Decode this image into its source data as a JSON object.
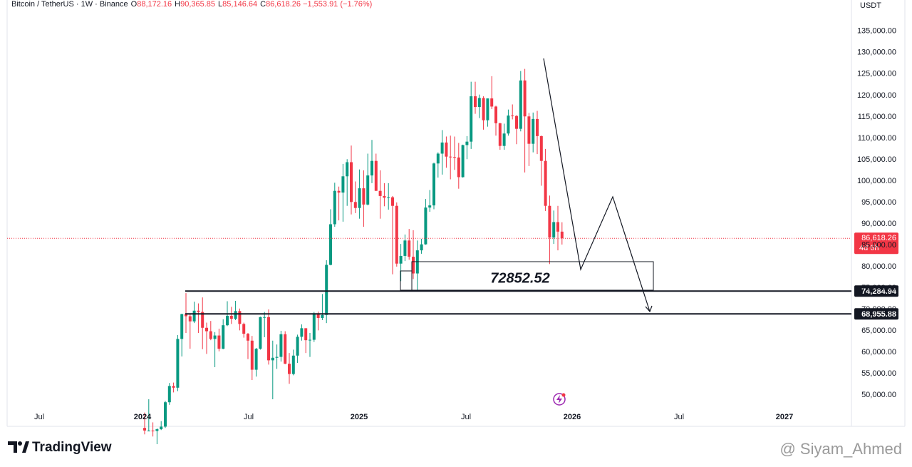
{
  "chart_data": {
    "type": "candlestick",
    "header": {
      "symbol": "Bitcoin / TetherUS · 1W · Binance",
      "ohlc": [
        {
          "key": "O",
          "value": "88,172.16"
        },
        {
          "key": "H",
          "value": "90,365.85"
        },
        {
          "key": "L",
          "value": "85,146.64"
        },
        {
          "key": "C",
          "value": "86,618.26"
        }
      ],
      "change": "−1,553.91 (−1.76%)"
    },
    "axis_unit": "USDT",
    "up_color": "#089981",
    "down_color": "#f23645",
    "open": [
      42300,
      41700,
      41700,
      41600,
      42000,
      42600,
      48300,
      52100,
      51700,
      63100,
      68900,
      68400,
      67200,
      69700,
      69400,
      65700,
      64900,
      63100,
      63900,
      60800,
      66300,
      68500,
      67800,
      69600,
      66600,
      64300,
      62700,
      55900,
      60800,
      68200,
      68200,
      58100,
      58700,
      58900,
      64200,
      57300,
      54900,
      59200,
      63600,
      65600,
      62800,
      62900,
      69000,
      68000,
      68700,
      80400,
      89900,
      97700,
      97300,
      101100,
      104400,
      95100,
      93700,
      98300,
      94500,
      101300,
      104700,
      97700,
      96500,
      96100,
      96200,
      94200,
      80700,
      82500,
      86100,
      82300,
      78400,
      83800,
      85200,
      93800,
      94300,
      104100,
      106400,
      109000,
      105700,
      105600,
      105500,
      100900,
      108400,
      109200,
      119800,
      117300,
      119400,
      114200,
      119300,
      117400,
      113500,
      108200,
      111100,
      115300,
      115200,
      112200,
      123500,
      115100,
      108700,
      114500,
      110500,
      104700,
      94200,
      86800,
      90400,
      88172.16
    ],
    "high": [
      45900,
      49000,
      43600,
      42200,
      43900,
      48600,
      52800,
      52900,
      64000,
      69000,
      73800,
      68900,
      71800,
      71400,
      72800,
      66900,
      67300,
      64700,
      65500,
      67700,
      71900,
      70600,
      72000,
      70200,
      66900,
      64500,
      63800,
      61000,
      68300,
      69400,
      70000,
      62700,
      61800,
      65000,
      64900,
      59800,
      60600,
      64100,
      66500,
      65600,
      64500,
      69400,
      69500,
      73600,
      81500,
      93400,
      99600,
      98700,
      104000,
      105100,
      108300,
      99900,
      102700,
      102500,
      106400,
      109600,
      106400,
      102500,
      99500,
      99500,
      96500,
      95000,
      85300,
      87500,
      88800,
      88500,
      86100,
      86500,
      95800,
      97900,
      104300,
      106700,
      111900,
      110400,
      110600,
      110400,
      108900,
      108500,
      110500,
      123200,
      123200,
      120200,
      119800,
      119300,
      124500,
      117600,
      113600,
      113400,
      116700,
      117900,
      115400,
      125700,
      126200,
      115900,
      116000,
      116400,
      110600,
      107500,
      96600,
      93100,
      94200,
      90365.85
    ],
    "low": [
      40800,
      41500,
      40300,
      38500,
      41800,
      42300,
      47700,
      50600,
      50900,
      59000,
      64500,
      60800,
      66800,
      64500,
      60700,
      59600,
      62800,
      56500,
      60200,
      60700,
      66100,
      66600,
      67500,
      65100,
      63400,
      58400,
      53500,
      54300,
      60600,
      63500,
      57100,
      49000,
      56100,
      57800,
      57200,
      52600,
      54600,
      57500,
      62700,
      59800,
      58900,
      62400,
      65100,
      67500,
      66800,
      80300,
      89300,
      90800,
      90500,
      94200,
      92200,
      92500,
      91200,
      89300,
      94300,
      99500,
      97700,
      91200,
      94100,
      93300,
      78200,
      80000,
      76600,
      81300,
      81600,
      77100,
      74400,
      83000,
      85100,
      92800,
      93400,
      100800,
      101500,
      103100,
      100400,
      102600,
      98200,
      100800,
      105100,
      107500,
      115700,
      114700,
      112000,
      112700,
      116800,
      110600,
      107300,
      107300,
      110600,
      114400,
      108600,
      111600,
      102000,
      103500,
      106700,
      106300,
      98900,
      93000,
      80600,
      85300,
      83800,
      85146.64
    ],
    "close": [
      41700,
      41700,
      41600,
      42000,
      42600,
      48300,
      52100,
      51700,
      63100,
      68900,
      68400,
      67200,
      69700,
      69400,
      65700,
      64900,
      63100,
      63900,
      60800,
      66300,
      68500,
      67800,
      69600,
      66600,
      64300,
      62700,
      55900,
      60800,
      68200,
      68200,
      58100,
      58700,
      58900,
      64200,
      57300,
      54900,
      59200,
      63600,
      65600,
      62800,
      62900,
      69000,
      68000,
      68700,
      80400,
      89900,
      97700,
      97300,
      101100,
      104400,
      95100,
      93700,
      98300,
      94500,
      101300,
      104700,
      97700,
      96500,
      96100,
      96200,
      94200,
      80700,
      82500,
      86100,
      82300,
      78400,
      83800,
      85200,
      93800,
      94300,
      104100,
      106400,
      109000,
      105700,
      105600,
      105500,
      100900,
      108400,
      109200,
      119800,
      117300,
      119400,
      114200,
      119300,
      117400,
      113500,
      108200,
      111100,
      115300,
      115200,
      112200,
      123500,
      115100,
      108700,
      114500,
      110500,
      104700,
      94200,
      86800,
      90400,
      88172.16,
      86618.26
    ],
    "ylim": [
      47000,
      142300
    ],
    "yticks": [
      {
        "value": 50000,
        "label": "50,000.00"
      },
      {
        "value": 55000,
        "label": "55,000.00"
      },
      {
        "value": 60000,
        "label": "60,000.00"
      },
      {
        "value": 65000,
        "label": "65,000.00"
      },
      {
        "value": 70000,
        "label": "70,000.00"
      },
      {
        "value": 75000,
        "label": "75,000.00"
      },
      {
        "value": 80000,
        "label": "80,000.00"
      },
      {
        "value": 85000,
        "label": "85,000.00"
      },
      {
        "value": 90000,
        "label": "90,000.00"
      },
      {
        "value": 95000,
        "label": "95,000.00"
      },
      {
        "value": 100000,
        "label": "100,000.00"
      },
      {
        "value": 105000,
        "label": "105,000.00"
      },
      {
        "value": 110000,
        "label": "110,000.00"
      },
      {
        "value": 115000,
        "label": "115,000.00"
      },
      {
        "value": 120000,
        "label": "120,000.00"
      },
      {
        "value": 125000,
        "label": "125,000.00"
      },
      {
        "value": 130000,
        "label": "130,000.00"
      },
      {
        "value": 135000,
        "label": "135,000.00"
      }
    ],
    "grid": false,
    "x_labels": [
      "Jul",
      "2024",
      "Jul",
      "2025",
      "Jul",
      "2026",
      "Jul",
      "2027"
    ],
    "levels": [
      {
        "value": 74284.94,
        "label": "74,284.94"
      },
      {
        "value": 68955.88,
        "label": "68,955.88"
      }
    ],
    "last_price": {
      "label": "86,618.26",
      "countdown": "4d 6h"
    },
    "box_label": "72852.52",
    "brand": "TradingView",
    "watermark": "@ Siyam_Ahmed"
  }
}
